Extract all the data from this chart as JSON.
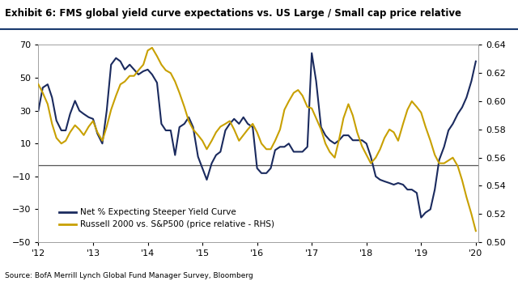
{
  "title": "Exhibit 6: FMS global yield curve expectations vs. US Large / Small cap price relative",
  "source": "Source: BofA Merrill Lynch Global Fund Manager Survey, Bloomberg",
  "left_ylim": [
    -50,
    70
  ],
  "right_ylim": [
    0.5,
    0.64
  ],
  "left_yticks": [
    -50,
    -30,
    -10,
    10,
    30,
    50,
    70
  ],
  "right_yticks": [
    0.5,
    0.52,
    0.54,
    0.56,
    0.58,
    0.6,
    0.62,
    0.64
  ],
  "hline_y": -3,
  "navy_color": "#1a2a5e",
  "gold_color": "#c8a000",
  "background_color": "#ffffff",
  "legend1": "Net % Expecting Steeper Yield Curve",
  "legend2": "Russell 2000 vs. S&P500 (price relative - RHS)",
  "navy_x": [
    2012.0,
    2012.08,
    2012.17,
    2012.25,
    2012.33,
    2012.42,
    2012.5,
    2012.58,
    2012.67,
    2012.75,
    2012.83,
    2012.92,
    2013.0,
    2013.08,
    2013.17,
    2013.25,
    2013.33,
    2013.42,
    2013.5,
    2013.58,
    2013.67,
    2013.75,
    2013.83,
    2013.92,
    2014.0,
    2014.08,
    2014.17,
    2014.25,
    2014.33,
    2014.42,
    2014.5,
    2014.58,
    2014.67,
    2014.75,
    2014.83,
    2014.92,
    2015.0,
    2015.08,
    2015.17,
    2015.25,
    2015.33,
    2015.42,
    2015.5,
    2015.58,
    2015.67,
    2015.75,
    2015.83,
    2015.92,
    2016.0,
    2016.08,
    2016.17,
    2016.25,
    2016.33,
    2016.42,
    2016.5,
    2016.58,
    2016.67,
    2016.75,
    2016.83,
    2016.92,
    2017.0,
    2017.08,
    2017.17,
    2017.25,
    2017.33,
    2017.42,
    2017.5,
    2017.58,
    2017.67,
    2017.75,
    2017.83,
    2017.92,
    2018.0,
    2018.08,
    2018.17,
    2018.25,
    2018.33,
    2018.42,
    2018.5,
    2018.58,
    2018.67,
    2018.75,
    2018.83,
    2018.92,
    2019.0,
    2019.08,
    2019.17,
    2019.25,
    2019.33,
    2019.42,
    2019.5,
    2019.58,
    2019.67,
    2019.75,
    2019.83,
    2019.92,
    2020.0
  ],
  "navy_y": [
    30,
    44,
    46,
    38,
    24,
    18,
    18,
    28,
    36,
    30,
    28,
    26,
    25,
    16,
    10,
    30,
    58,
    62,
    60,
    55,
    58,
    55,
    52,
    54,
    55,
    52,
    47,
    22,
    18,
    18,
    3,
    20,
    22,
    26,
    20,
    2,
    -5,
    -12,
    -2,
    3,
    5,
    18,
    22,
    25,
    22,
    26,
    22,
    20,
    -5,
    -8,
    -8,
    -5,
    6,
    8,
    8,
    10,
    5,
    5,
    5,
    8,
    65,
    48,
    20,
    15,
    12,
    10,
    12,
    15,
    15,
    12,
    12,
    12,
    10,
    2,
    -10,
    -12,
    -13,
    -14,
    -15,
    -14,
    -15,
    -18,
    -18,
    -20,
    -35,
    -32,
    -30,
    -18,
    0,
    8,
    18,
    22,
    28,
    32,
    38,
    48,
    60
  ],
  "gold_x": [
    2012.0,
    2012.08,
    2012.17,
    2012.25,
    2012.33,
    2012.42,
    2012.5,
    2012.58,
    2012.67,
    2012.75,
    2012.83,
    2012.92,
    2013.0,
    2013.08,
    2013.17,
    2013.25,
    2013.33,
    2013.42,
    2013.5,
    2013.58,
    2013.67,
    2013.75,
    2013.83,
    2013.92,
    2014.0,
    2014.08,
    2014.17,
    2014.25,
    2014.33,
    2014.42,
    2014.5,
    2014.58,
    2014.67,
    2014.75,
    2014.83,
    2014.92,
    2015.0,
    2015.08,
    2015.17,
    2015.25,
    2015.33,
    2015.42,
    2015.5,
    2015.58,
    2015.67,
    2015.75,
    2015.83,
    2015.92,
    2016.0,
    2016.08,
    2016.17,
    2016.25,
    2016.33,
    2016.42,
    2016.5,
    2016.58,
    2016.67,
    2016.75,
    2016.83,
    2016.92,
    2017.0,
    2017.08,
    2017.17,
    2017.25,
    2017.33,
    2017.42,
    2017.5,
    2017.58,
    2017.67,
    2017.75,
    2017.83,
    2017.92,
    2018.0,
    2018.08,
    2018.17,
    2018.25,
    2018.33,
    2018.42,
    2018.5,
    2018.58,
    2018.67,
    2018.75,
    2018.83,
    2018.92,
    2019.0,
    2019.08,
    2019.17,
    2019.25,
    2019.33,
    2019.42,
    2019.5,
    2019.58,
    2019.67,
    2019.75,
    2019.83,
    2019.92,
    2020.0
  ],
  "gold_y": [
    0.612,
    0.606,
    0.598,
    0.584,
    0.574,
    0.57,
    0.572,
    0.578,
    0.583,
    0.58,
    0.576,
    0.582,
    0.586,
    0.578,
    0.572,
    0.582,
    0.594,
    0.604,
    0.612,
    0.614,
    0.618,
    0.618,
    0.622,
    0.626,
    0.636,
    0.638,
    0.632,
    0.626,
    0.622,
    0.62,
    0.614,
    0.606,
    0.596,
    0.586,
    0.58,
    0.576,
    0.572,
    0.566,
    0.572,
    0.578,
    0.582,
    0.584,
    0.586,
    0.58,
    0.572,
    0.576,
    0.58,
    0.584,
    0.578,
    0.57,
    0.566,
    0.566,
    0.572,
    0.58,
    0.594,
    0.6,
    0.606,
    0.608,
    0.604,
    0.596,
    0.595,
    0.588,
    0.58,
    0.57,
    0.564,
    0.56,
    0.573,
    0.588,
    0.598,
    0.59,
    0.578,
    0.568,
    0.562,
    0.556,
    0.56,
    0.566,
    0.574,
    0.58,
    0.578,
    0.572,
    0.584,
    0.594,
    0.6,
    0.596,
    0.592,
    0.582,
    0.572,
    0.562,
    0.556,
    0.556,
    0.558,
    0.56,
    0.554,
    0.544,
    0.532,
    0.52,
    0.508
  ],
  "xticks": [
    2012,
    2013,
    2014,
    2015,
    2016,
    2017,
    2018,
    2019,
    2020
  ],
  "xticklabels": [
    "'12",
    "'13",
    "'14",
    "'15",
    "'16",
    "'17",
    "'18",
    "'19",
    "'20"
  ]
}
